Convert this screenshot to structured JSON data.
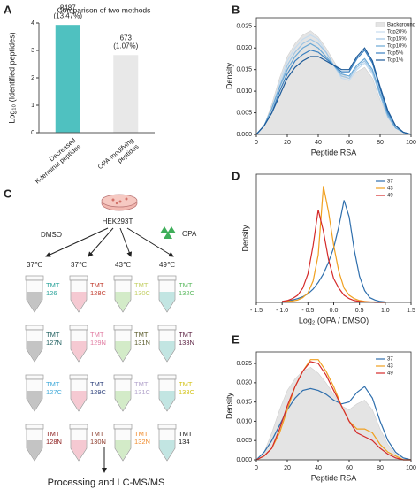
{
  "chart_data": [
    {
      "type": "bar",
      "panel": "A",
      "title": "Comparison of two methods",
      "ylabel": "Log₁₀ (Identified peptides)",
      "categories": [
        [
          "Decreased",
          "K-terminal peptides"
        ],
        [
          "OPA-modifying",
          "peptides"
        ]
      ],
      "values": [
        3.93,
        2.83
      ],
      "colors": [
        "#4fc1c0",
        "#e8e8e8"
      ],
      "annotations": [
        [
          "8487",
          "(13.47%)"
        ],
        [
          "673",
          "(1.07%)"
        ]
      ],
      "ylim": [
        0,
        4
      ],
      "yticks": [
        0,
        1,
        2,
        3,
        4
      ]
    },
    {
      "type": "line",
      "panel": "B",
      "xlabel": "Peptide RSA",
      "ylabel": "Density",
      "x": [
        0,
        5,
        10,
        15,
        20,
        25,
        30,
        35,
        40,
        45,
        50,
        55,
        60,
        65,
        70,
        75,
        80,
        85,
        90,
        95,
        100
      ],
      "xlim": [
        0,
        100
      ],
      "xticks": [
        0,
        20,
        40,
        60,
        80,
        100
      ],
      "ylim": [
        0,
        0.027
      ],
      "yticks": [
        {
          "value": 0,
          "label": "0.000"
        },
        {
          "value": 0.005,
          "label": "0.005"
        },
        {
          "value": 0.01,
          "label": "0.010"
        },
        {
          "value": 0.015,
          "label": "0.015"
        },
        {
          "value": 0.02,
          "label": "0.020"
        },
        {
          "value": 0.025,
          "label": "0.025"
        }
      ],
      "legend": "upper right",
      "series": [
        {
          "name": "Background",
          "color": "#e4e4e4",
          "area": true,
          "values": [
            0,
            0.002,
            0.007,
            0.013,
            0.018,
            0.021,
            0.023,
            0.024,
            0.0225,
            0.02,
            0.017,
            0.014,
            0.013,
            0.0145,
            0.0155,
            0.013,
            0.008,
            0.004,
            0.0015,
            0.0005,
            0
          ]
        },
        {
          "name": "Top20%",
          "color": "#c6dcef",
          "values": [
            0,
            0.002,
            0.006,
            0.012,
            0.017,
            0.02,
            0.022,
            0.023,
            0.022,
            0.019,
            0.016,
            0.013,
            0.0125,
            0.015,
            0.0165,
            0.014,
            0.009,
            0.004,
            0.0015,
            0.0005,
            0
          ]
        },
        {
          "name": "Top15%",
          "color": "#9ec5e5",
          "values": [
            0,
            0.002,
            0.006,
            0.011,
            0.016,
            0.019,
            0.021,
            0.022,
            0.021,
            0.019,
            0.016,
            0.0135,
            0.013,
            0.0155,
            0.017,
            0.0145,
            0.009,
            0.004,
            0.0015,
            0.0005,
            0
          ]
        },
        {
          "name": "Top10%",
          "color": "#6aa8d6",
          "values": [
            0,
            0.002,
            0.006,
            0.011,
            0.015,
            0.018,
            0.02,
            0.021,
            0.02,
            0.018,
            0.016,
            0.014,
            0.0135,
            0.016,
            0.0175,
            0.015,
            0.0095,
            0.0045,
            0.0015,
            0.0005,
            0
          ]
        },
        {
          "name": "Top5%",
          "color": "#3a80c0",
          "values": [
            0,
            0.002,
            0.005,
            0.01,
            0.014,
            0.017,
            0.0185,
            0.0195,
            0.019,
            0.0175,
            0.016,
            0.0145,
            0.0145,
            0.0175,
            0.0195,
            0.0165,
            0.0105,
            0.005,
            0.002,
            0.0005,
            0
          ]
        },
        {
          "name": "Top1%",
          "color": "#1d5a98",
          "values": [
            0,
            0.002,
            0.005,
            0.009,
            0.013,
            0.0155,
            0.017,
            0.018,
            0.018,
            0.017,
            0.016,
            0.015,
            0.015,
            0.018,
            0.02,
            0.017,
            0.011,
            0.0055,
            0.002,
            0.0005,
            0
          ]
        }
      ]
    },
    {
      "type": "line",
      "panel": "D",
      "xlabel": "Log₂ (OPA / DMSO)",
      "ylabel": "Density",
      "x": [
        -1.0,
        -0.9,
        -0.8,
        -0.7,
        -0.6,
        -0.5,
        -0.4,
        -0.3,
        -0.2,
        -0.1,
        0.0,
        0.1,
        0.2,
        0.3,
        0.4,
        0.5,
        0.6,
        0.7,
        0.8,
        0.9,
        1.0
      ],
      "xlim": [
        -1.5,
        1.5
      ],
      "xticks": [
        {
          "value": -1.5,
          "label": "- 1.5"
        },
        {
          "value": -1,
          "label": "- 1.0"
        },
        {
          "value": -0.5,
          "label": "- 0.5"
        },
        {
          "value": 0,
          "label": "0.0"
        },
        0.5,
        {
          "value": 1,
          "label": "1.0"
        },
        1.5
      ],
      "ylim": [
        0,
        2.7
      ],
      "legend": "upper right",
      "series": [
        {
          "name": "37",
          "color": "#2f6fad",
          "values": [
            0.02,
            0.03,
            0.05,
            0.08,
            0.12,
            0.18,
            0.28,
            0.42,
            0.6,
            0.85,
            1.15,
            1.6,
            2.15,
            1.8,
            1.1,
            0.55,
            0.25,
            0.1,
            0.05,
            0.02,
            0.01
          ]
        },
        {
          "name": "43",
          "color": "#f0a020",
          "values": [
            0.01,
            0.02,
            0.03,
            0.05,
            0.1,
            0.2,
            0.45,
            1.0,
            2.45,
            1.9,
            1.2,
            0.65,
            0.3,
            0.15,
            0.08,
            0.04,
            0.02,
            0.01,
            0.01,
            0,
            0
          ]
        },
        {
          "name": "49",
          "color": "#d42a2a",
          "values": [
            0.02,
            0.04,
            0.08,
            0.15,
            0.3,
            0.6,
            1.2,
            1.95,
            1.5,
            0.9,
            0.5,
            0.3,
            0.15,
            0.08,
            0.04,
            0.02,
            0.01,
            0.01,
            0,
            0,
            0
          ]
        }
      ]
    },
    {
      "type": "line",
      "panel": "E",
      "xlabel": "Peptide RSA",
      "ylabel": "Density",
      "x": [
        0,
        5,
        10,
        15,
        20,
        25,
        30,
        35,
        40,
        45,
        50,
        55,
        60,
        65,
        70,
        75,
        80,
        85,
        90,
        95,
        100
      ],
      "xlim": [
        0,
        100
      ],
      "xticks": [
        0,
        20,
        40,
        60,
        80,
        100
      ],
      "ylim": [
        0,
        0.028
      ],
      "yticks": [
        {
          "value": 0,
          "label": "0.000"
        },
        {
          "value": 0.005,
          "label": "0.005"
        },
        {
          "value": 0.01,
          "label": "0.010"
        },
        {
          "value": 0.015,
          "label": "0.015"
        },
        {
          "value": 0.02,
          "label": "0.020"
        },
        {
          "value": 0.025,
          "label": "0.025"
        }
      ],
      "legend": "upper right",
      "background": {
        "color": "#e4e4e4",
        "values": [
          0,
          0.002,
          0.007,
          0.013,
          0.018,
          0.021,
          0.023,
          0.024,
          0.0225,
          0.02,
          0.017,
          0.014,
          0.013,
          0.0145,
          0.0155,
          0.013,
          0.008,
          0.004,
          0.0015,
          0.0005,
          0
        ]
      },
      "series": [
        {
          "name": "37",
          "color": "#2f6fad",
          "values": [
            0,
            0.002,
            0.005,
            0.009,
            0.013,
            0.016,
            0.018,
            0.0185,
            0.018,
            0.017,
            0.0155,
            0.0145,
            0.015,
            0.0175,
            0.019,
            0.016,
            0.01,
            0.005,
            0.002,
            0.0005,
            0
          ]
        },
        {
          "name": "43",
          "color": "#f0a020",
          "values": [
            0,
            0.001,
            0.003,
            0.007,
            0.013,
            0.019,
            0.023,
            0.026,
            0.026,
            0.023,
            0.019,
            0.014,
            0.01,
            0.008,
            0.008,
            0.007,
            0.004,
            0.002,
            0.001,
            0,
            0
          ]
        },
        {
          "name": "49",
          "color": "#d42a2a",
          "values": [
            0,
            0.001,
            0.003,
            0.008,
            0.014,
            0.019,
            0.023,
            0.0255,
            0.025,
            0.022,
            0.018,
            0.014,
            0.01,
            0.007,
            0.006,
            0.005,
            0.003,
            0.0015,
            0.0005,
            0,
            0
          ]
        }
      ]
    }
  ],
  "diagram": {
    "panel": "C",
    "cell": "HEK293T",
    "control": "DMSO",
    "treatment": "OPA",
    "temperatures": [
      "37℃",
      "37℃",
      "43℃",
      "49℃"
    ],
    "tube_colors": [
      "#c4c4c4",
      "#f5c9d2",
      "#d3ebc8",
      "#c2e5e2"
    ],
    "tubes": [
      [
        {
          "lines": [
            "TMT",
            "126"
          ],
          "color": "#2aa39a"
        },
        {
          "lines": [
            "TMT",
            "128C"
          ],
          "color": "#c0392b"
        },
        {
          "lines": [
            "TMT",
            "130C"
          ],
          "color": "#c3cf62"
        },
        {
          "lines": [
            "TMT",
            "132C"
          ],
          "color": "#58b85c"
        }
      ],
      [
        {
          "lines": [
            "TMT",
            "127N"
          ],
          "color": "#1f5f5f"
        },
        {
          "lines": [
            "TMT",
            "129N"
          ],
          "color": "#e07aa0"
        },
        {
          "lines": [
            "TMT",
            "131N"
          ],
          "color": "#5a5a2a"
        },
        {
          "lines": [
            "TMT",
            "133N"
          ],
          "color": "#5a2040"
        }
      ],
      [
        {
          "lines": [
            "TMT",
            "127C"
          ],
          "color": "#3fa9d9"
        },
        {
          "lines": [
            "TMT",
            "129C"
          ],
          "color": "#2b3f7a"
        },
        {
          "lines": [
            "TMT",
            "131C"
          ],
          "color": "#b3a4cc"
        },
        {
          "lines": [
            "TMT",
            "133C"
          ],
          "color": "#d4c41a"
        }
      ],
      [
        {
          "lines": [
            "TMT",
            "128N"
          ],
          "color": "#8b1a1a"
        },
        {
          "lines": [
            "TMT",
            "130N"
          ],
          "color": "#8b3a2a"
        },
        {
          "lines": [
            "TMT",
            "132N"
          ],
          "color": "#f08a2a"
        },
        {
          "lines": [
            "TMT",
            "134"
          ],
          "color": "#111111"
        }
      ]
    ],
    "footer": "Processing and LC-MS/MS"
  }
}
